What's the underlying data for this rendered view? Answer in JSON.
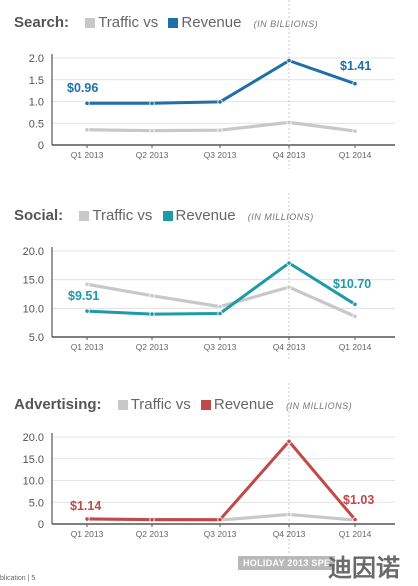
{
  "chart_data": [
    {
      "type": "line",
      "title": "Search:",
      "legend": [
        {
          "label": "Traffic vs",
          "color": "#c8c8c8"
        },
        {
          "label": "Revenue",
          "color": "#1f6fa8"
        }
      ],
      "units": "(IN BILLIONS)",
      "categories": [
        "Q1 2013",
        "Q2 2013",
        "Q3 2013",
        "Q4 2013",
        "Q1 2014"
      ],
      "yticks": [
        "2.0",
        "1.5",
        "1.0",
        "0.5",
        "0"
      ],
      "ylim": [
        0,
        2.0
      ],
      "series": [
        {
          "name": "Traffic",
          "color": "#c8c8c8",
          "values": [
            0.35,
            0.33,
            0.34,
            0.52,
            0.32
          ]
        },
        {
          "name": "Revenue",
          "color": "#1f6fa8",
          "values": [
            0.96,
            0.96,
            0.99,
            1.94,
            1.41
          ]
        }
      ],
      "annotations": [
        {
          "text": "$0.96",
          "color": "#1f6fa8"
        },
        {
          "text": "$1.41",
          "color": "#1f6fa8"
        }
      ]
    },
    {
      "type": "line",
      "title": "Social:",
      "legend": [
        {
          "label": "Traffic vs",
          "color": "#c8c8c8"
        },
        {
          "label": "Revenue",
          "color": "#1f9aa6"
        }
      ],
      "units": "(IN MILLIONS)",
      "categories": [
        "Q1 2013",
        "Q2 2013",
        "Q3 2013",
        "Q4 2013",
        "Q1 2014"
      ],
      "yticks": [
        "20.0",
        "15.0",
        "10.0",
        "5.0"
      ],
      "ylim": [
        5,
        20
      ],
      "series": [
        {
          "name": "Traffic",
          "color": "#c8c8c8",
          "values": [
            14.2,
            12.2,
            10.3,
            13.7,
            8.6
          ]
        },
        {
          "name": "Revenue",
          "color": "#1f9aa6",
          "values": [
            9.51,
            9.0,
            9.1,
            17.9,
            10.7
          ]
        }
      ],
      "annotations": [
        {
          "text": "$9.51",
          "color": "#1f9aa6"
        },
        {
          "text": "$10.70",
          "color": "#1f9aa6"
        }
      ]
    },
    {
      "type": "line",
      "title": "Advertising:",
      "legend": [
        {
          "label": "Traffic vs",
          "color": "#c8c8c8"
        },
        {
          "label": "Revenue",
          "color": "#c0494a"
        }
      ],
      "units": "(IN MILLIONS)",
      "categories": [
        "Q1 2013",
        "Q2 2013",
        "Q3 2013",
        "Q4 2013",
        "Q1 2014"
      ],
      "yticks": [
        "20.0",
        "15.0",
        "10.0",
        "5.0",
        "0"
      ],
      "ylim": [
        0,
        20
      ],
      "series": [
        {
          "name": "Traffic",
          "color": "#c8c8c8",
          "values": [
            1.2,
            1.0,
            0.9,
            2.2,
            0.9
          ]
        },
        {
          "name": "Revenue",
          "color": "#c0494a",
          "values": [
            1.14,
            1.0,
            1.0,
            19.0,
            1.03
          ]
        }
      ],
      "annotations": [
        {
          "text": "$1.14",
          "color": "#c0494a"
        },
        {
          "text": "$1.03",
          "color": "#c0494a"
        }
      ]
    }
  ],
  "footer": {
    "left": "blication | 5",
    "badge": "HOLIDAY 2013 SPE",
    "watermark": "迪因诺"
  }
}
